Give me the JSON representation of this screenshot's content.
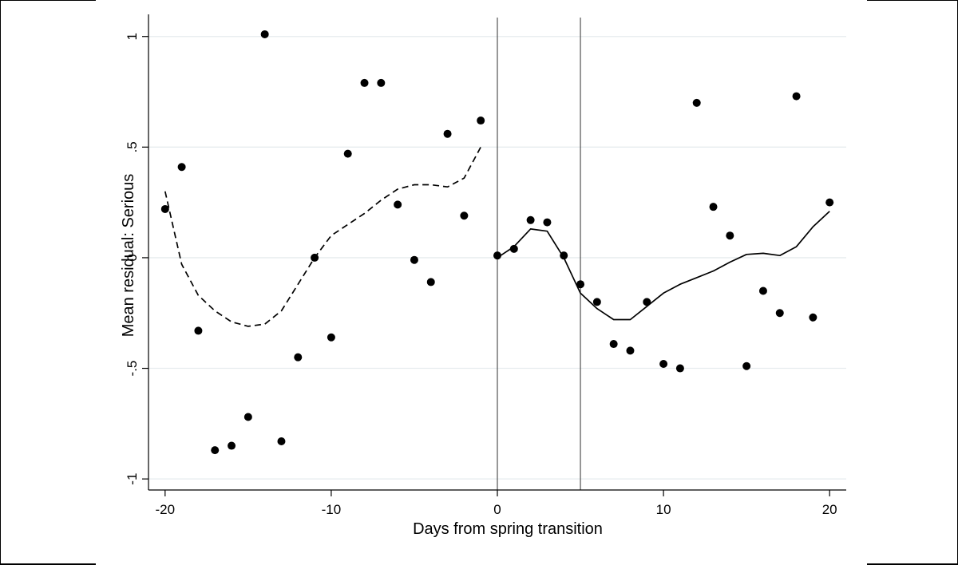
{
  "chart_data": {
    "type": "scatter",
    "xlabel": "Days from spring transition",
    "ylabel": "Mean residual: Serious",
    "xlim": [
      -21,
      21
    ],
    "ylim": [
      -1.05,
      1.1
    ],
    "grid": true,
    "x_ticks": [
      -20,
      -10,
      0,
      10,
      20
    ],
    "y_ticks": [
      -1,
      -0.5,
      0,
      0.5,
      1
    ],
    "x_tick_labels": [
      "-20",
      "-10",
      "0",
      "10",
      "20"
    ],
    "y_tick_labels": [
      "-1",
      "-.5",
      "0",
      ".5",
      "1"
    ],
    "vertical_lines": [
      0,
      5
    ],
    "series": [
      {
        "kind": "points",
        "x": [
          -20,
          -19,
          -18,
          -17,
          -16,
          -15,
          -14,
          -13,
          -12,
          -11,
          -10,
          -9,
          -8,
          -7,
          -6,
          -5,
          -4,
          -3,
          -2,
          -1,
          0,
          1,
          2,
          3,
          4,
          5,
          6,
          7,
          8,
          9,
          10,
          11,
          12,
          13,
          14,
          15,
          16,
          17,
          18,
          19,
          20
        ],
        "y": [
          0.22,
          0.41,
          -0.33,
          -0.87,
          -0.85,
          -0.72,
          1.01,
          -0.83,
          -0.45,
          0.0,
          -0.36,
          0.47,
          0.79,
          0.79,
          0.24,
          -0.01,
          -0.11,
          0.56,
          0.19,
          0.62,
          0.01,
          0.04,
          0.17,
          0.16,
          0.01,
          -0.12,
          -0.2,
          -0.39,
          -0.42,
          -0.2,
          -0.48,
          -0.5,
          0.7,
          0.23,
          0.1,
          -0.49,
          -0.15,
          -0.25,
          0.73,
          -0.27,
          0.25
        ]
      },
      {
        "kind": "line-dashed",
        "x": [
          -20,
          -19,
          -18,
          -17,
          -16,
          -15,
          -14,
          -13,
          -12,
          -11,
          -10,
          -9,
          -8,
          -7,
          -6,
          -5,
          -4,
          -3,
          -2,
          -1
        ],
        "y": [
          0.3,
          -0.03,
          -0.17,
          -0.24,
          -0.29,
          -0.31,
          -0.3,
          -0.24,
          -0.12,
          0.0,
          0.1,
          0.15,
          0.2,
          0.26,
          0.31,
          0.33,
          0.33,
          0.32,
          0.36,
          0.5
        ]
      },
      {
        "kind": "line-solid",
        "x": [
          0,
          1,
          2,
          3,
          4,
          5,
          6,
          7,
          8,
          9,
          10,
          11,
          12,
          13,
          14,
          15,
          16,
          17,
          18,
          19,
          20
        ],
        "y": [
          0.0,
          0.05,
          0.13,
          0.12,
          0.0,
          -0.16,
          -0.23,
          -0.28,
          -0.28,
          -0.22,
          -0.16,
          -0.12,
          -0.09,
          -0.06,
          -0.02,
          0.015,
          0.02,
          0.01,
          0.05,
          0.14,
          0.21
        ]
      }
    ]
  }
}
